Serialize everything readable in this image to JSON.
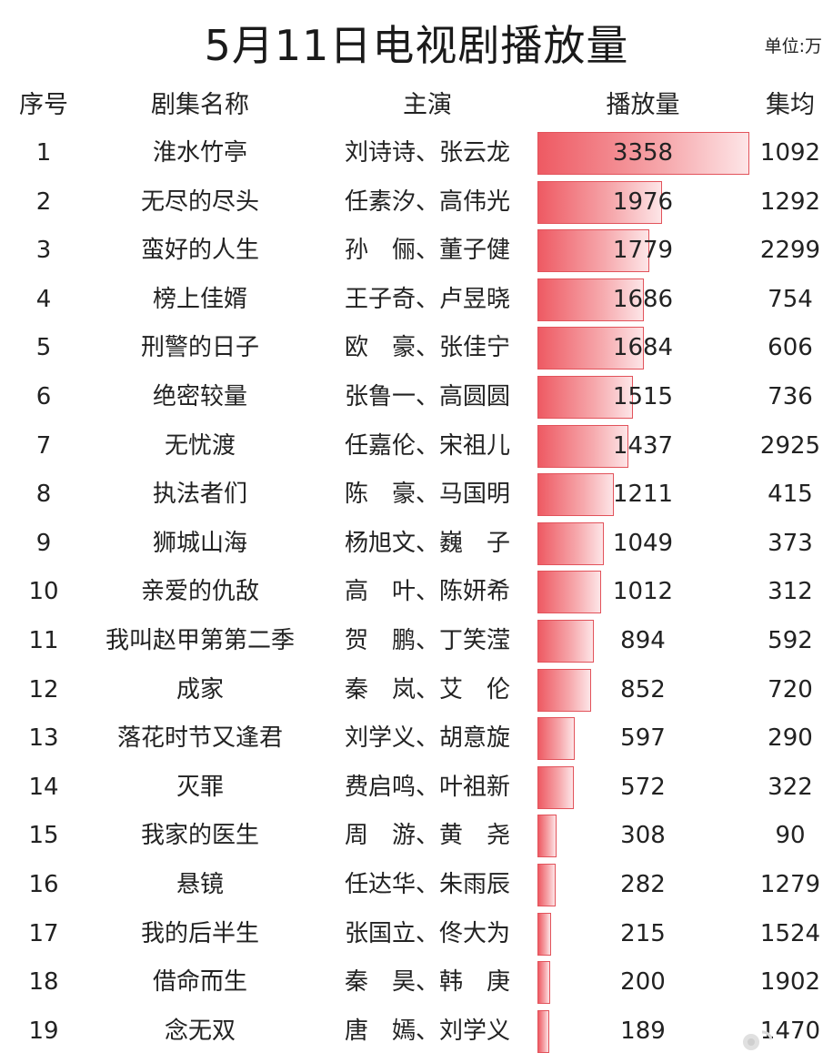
{
  "title": "5月11日电视剧播放量",
  "unit": "单位:万",
  "headers": {
    "rank": "序号",
    "name": "剧集名称",
    "cast": "主演",
    "plays": "播放量",
    "avg": "集均"
  },
  "colors": {
    "bar_fill": "#ee5a63",
    "bar_border": "#e2535b"
  },
  "chart_data": {
    "type": "bar",
    "title": "5月11日电视剧播放量",
    "orientation": "horizontal",
    "xlim": [
      0,
      3358
    ],
    "categories": [
      "淮水竹亭",
      "无尽的尽头",
      "蛮好的人生",
      "榜上佳婿",
      "刑警的日子",
      "绝密较量",
      "无忧渡",
      "执法者们",
      "狮城山海",
      "亲爱的仇敌",
      "我叫赵甲第第二季",
      "成家",
      "落花时节又逢君",
      "灭罪",
      "我家的医生",
      "悬镜",
      "我的后半生",
      "借命而生",
      "念无双"
    ],
    "values": [
      3358,
      1976,
      1779,
      1686,
      1684,
      1515,
      1437,
      1211,
      1049,
      1012,
      894,
      852,
      597,
      572,
      308,
      282,
      215,
      200,
      189
    ],
    "rows": [
      {
        "rank": "1",
        "name": "淮水竹亭",
        "cast": "刘诗诗、张云龙",
        "plays": 3358,
        "avg": "1092"
      },
      {
        "rank": "2",
        "name": "无尽的尽头",
        "cast": "任素汐、高伟光",
        "plays": 1976,
        "avg": "1292"
      },
      {
        "rank": "3",
        "name": "蛮好的人生",
        "cast": "孙　俪、董子健",
        "plays": 1779,
        "avg": "2299"
      },
      {
        "rank": "4",
        "name": "榜上佳婿",
        "cast": "王子奇、卢昱晓",
        "plays": 1686,
        "avg": "754"
      },
      {
        "rank": "5",
        "name": "刑警的日子",
        "cast": "欧　豪、张佳宁",
        "plays": 1684,
        "avg": "606"
      },
      {
        "rank": "6",
        "name": "绝密较量",
        "cast": "张鲁一、高圆圆",
        "plays": 1515,
        "avg": "736"
      },
      {
        "rank": "7",
        "name": "无忧渡",
        "cast": "任嘉伦、宋祖儿",
        "plays": 1437,
        "avg": "2925"
      },
      {
        "rank": "8",
        "name": "执法者们",
        "cast": "陈　豪、马国明",
        "plays": 1211,
        "avg": "415"
      },
      {
        "rank": "9",
        "name": "狮城山海",
        "cast": "杨旭文、巍　子",
        "plays": 1049,
        "avg": "373"
      },
      {
        "rank": "10",
        "name": "亲爱的仇敌",
        "cast": "高　叶、陈妍希",
        "plays": 1012,
        "avg": "312"
      },
      {
        "rank": "11",
        "name": "我叫赵甲第第二季",
        "cast": "贺　鹏、丁笑滢",
        "plays": 894,
        "avg": "592"
      },
      {
        "rank": "12",
        "name": "成家",
        "cast": "秦　岚、艾　伦",
        "plays": 852,
        "avg": "720"
      },
      {
        "rank": "13",
        "name": "落花时节又逢君",
        "cast": "刘学义、胡意旋",
        "plays": 597,
        "avg": "290"
      },
      {
        "rank": "14",
        "name": "灭罪",
        "cast": "费启鸣、叶祖新",
        "plays": 572,
        "avg": "322"
      },
      {
        "rank": "15",
        "name": "我家的医生",
        "cast": "周　游、黄　尧",
        "plays": 308,
        "avg": "90"
      },
      {
        "rank": "16",
        "name": "悬镜",
        "cast": "任达华、朱雨辰",
        "plays": 282,
        "avg": "1279"
      },
      {
        "rank": "17",
        "name": "我的后半生",
        "cast": "张国立、佟大为",
        "plays": 215,
        "avg": "1524"
      },
      {
        "rank": "18",
        "name": "借命而生",
        "cast": "秦　昊、韩　庚",
        "plays": 200,
        "avg": "1902"
      },
      {
        "rank": "19",
        "name": "念无双",
        "cast": "唐　嫣、刘学义",
        "plays": 189,
        "avg": "1470"
      }
    ]
  }
}
